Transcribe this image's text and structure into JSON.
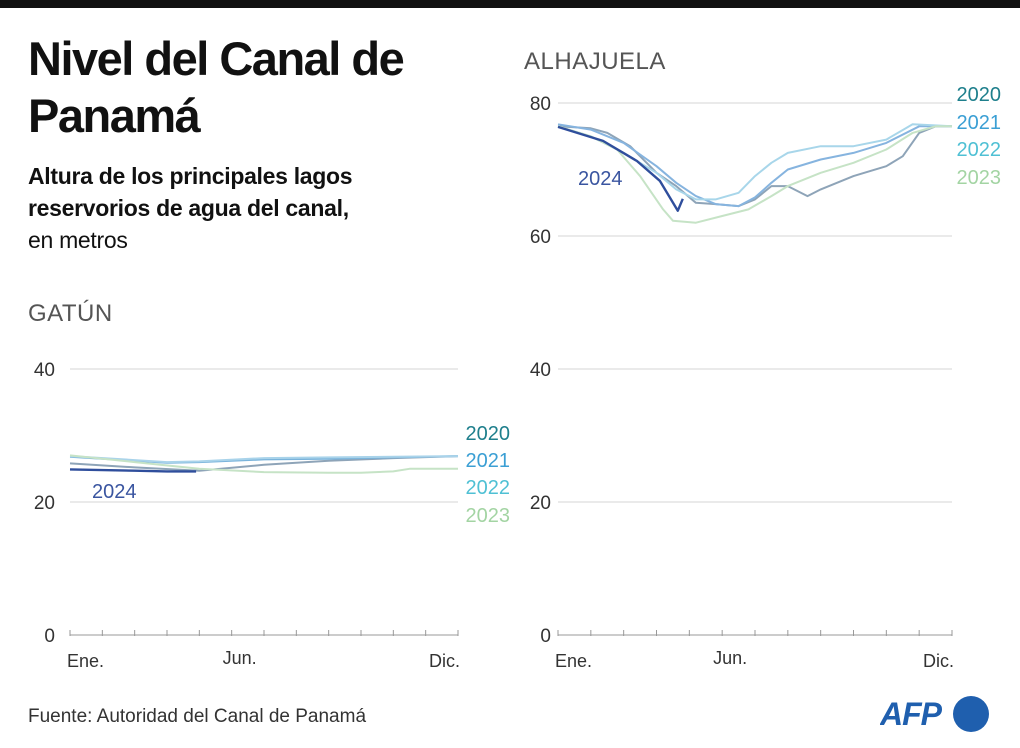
{
  "header": {
    "title": "Nivel del Canal de Panamá",
    "subtitle_bold": "Altura de los principales lagos reservorios de agua del canal,",
    "subtitle_rest": "en metros"
  },
  "footer": {
    "source": "Fuente: Autoridad del Canal de Panamá",
    "logo": "AFP"
  },
  "colors": {
    "grid": "#d6d6d6",
    "axis": "#999999",
    "logo": "#1f5fae"
  },
  "chart_data": [
    {
      "type": "line",
      "title": "GATÚN",
      "ylim": [
        0,
        40
      ],
      "yticks": [
        0,
        20,
        40
      ],
      "xlim": [
        0,
        12
      ],
      "xticks": [
        {
          "x": 0,
          "label": "Ene."
        },
        {
          "x": 5,
          "label": "Jun."
        },
        {
          "x": 12,
          "label": "Dic."
        }
      ],
      "grid": true,
      "series": [
        {
          "name": "2020",
          "label_color": "#1e7f8c",
          "line_color": "#8ea4b8",
          "x": [
            0,
            2,
            4,
            6,
            8,
            10,
            12
          ],
          "y": [
            25.8,
            25.2,
            24.7,
            25.6,
            26.2,
            26.6,
            26.9
          ]
        },
        {
          "name": "2021",
          "label_color": "#3b9fd4",
          "line_color": "#79b3db",
          "x": [
            0,
            2,
            3,
            4,
            6,
            8,
            10,
            12
          ],
          "y": [
            26.8,
            26.2,
            25.9,
            26.0,
            26.4,
            26.5,
            26.7,
            26.9
          ]
        },
        {
          "name": "2022",
          "label_color": "#4fc0d4",
          "line_color": "#a9d3ea",
          "x": [
            0,
            2,
            3,
            4,
            6,
            8,
            10,
            12
          ],
          "y": [
            26.9,
            26.3,
            26.0,
            26.1,
            26.6,
            26.7,
            26.8,
            26.9
          ]
        },
        {
          "name": "2023",
          "label_color": "#a3d4a3",
          "line_color": "#c6e3c6",
          "x": [
            0,
            2,
            4,
            6,
            8,
            9,
            10,
            10.5,
            12
          ],
          "y": [
            27.0,
            26.0,
            25.0,
            24.5,
            24.4,
            24.4,
            24.6,
            25.0,
            25.0
          ]
        },
        {
          "name": "2024",
          "label_color": "#3a55a0",
          "line_color": "#2f4e9c",
          "x": [
            0,
            1,
            2,
            3,
            3.9
          ],
          "y": [
            24.9,
            24.8,
            24.7,
            24.6,
            24.6
          ]
        }
      ]
    },
    {
      "type": "line",
      "title": "ALHAJUELA",
      "ylim": [
        0,
        80
      ],
      "yticks": [
        0,
        20,
        40,
        60,
        80
      ],
      "xlim": [
        0,
        12
      ],
      "xticks": [
        {
          "x": 0,
          "label": "Ene."
        },
        {
          "x": 5,
          "label": "Jun."
        },
        {
          "x": 12,
          "label": "Dic."
        }
      ],
      "grid": true,
      "series": [
        {
          "name": "2020",
          "label_color": "#1e7f8c",
          "line_color": "#8ea4b8",
          "x": [
            0,
            1,
            1.5,
            2.2,
            3,
            3.6,
            4.2,
            4.8,
            5.5,
            6,
            6.5,
            7,
            7.6,
            8,
            9,
            10,
            10.5,
            11,
            11.5,
            12
          ],
          "y": [
            76.5,
            76.2,
            75.5,
            73.5,
            69.5,
            67.5,
            65,
            64.8,
            64.5,
            65.5,
            67.5,
            67.5,
            66,
            67,
            69,
            70.5,
            72,
            75.5,
            76.5,
            76.5
          ]
        },
        {
          "name": "2021",
          "label_color": "#3b9fd4",
          "line_color": "#86b4df",
          "x": [
            0,
            1,
            2,
            3,
            3.6,
            4.2,
            4.8,
            5.5,
            6,
            6.5,
            7,
            8,
            9,
            10,
            11,
            12
          ],
          "y": [
            76.8,
            76,
            74,
            70.5,
            68,
            66,
            64.8,
            64.5,
            65.8,
            68,
            70,
            71.5,
            72.5,
            74,
            76.5,
            76.5
          ]
        },
        {
          "name": "2022",
          "label_color": "#4fc0d4",
          "line_color": "#a8d6ea",
          "x": [
            0,
            1,
            2,
            3,
            3.6,
            4.2,
            4.8,
            5.5,
            6,
            6.5,
            7,
            8,
            9,
            10,
            10.8,
            12
          ],
          "y": [
            76.5,
            75,
            72.5,
            69.5,
            67,
            65.5,
            65.5,
            66.5,
            69,
            71,
            72.5,
            73.5,
            73.5,
            74.5,
            76.8,
            76.5
          ]
        },
        {
          "name": "2023",
          "label_color": "#a3d4a3",
          "line_color": "#c6e3c6",
          "x": [
            0,
            1,
            1.8,
            2.5,
            3.2,
            3.5,
            4.2,
            5,
            5.8,
            6.5,
            7,
            8,
            9,
            10,
            10.8,
            11.5,
            12
          ],
          "y": [
            76.5,
            75,
            73,
            69,
            64,
            62.3,
            62,
            63,
            64,
            66,
            67.5,
            69.5,
            71,
            73,
            75.5,
            76.5,
            76.5
          ]
        },
        {
          "name": "2024",
          "label_color": "#3a55a0",
          "line_color": "#2f4e9c",
          "x": [
            0,
            1.37,
            2.4,
            3.1,
            3.65,
            3.8
          ],
          "y": [
            76.4,
            74.3,
            71.3,
            68.3,
            63.8,
            65.6
          ]
        }
      ]
    }
  ]
}
